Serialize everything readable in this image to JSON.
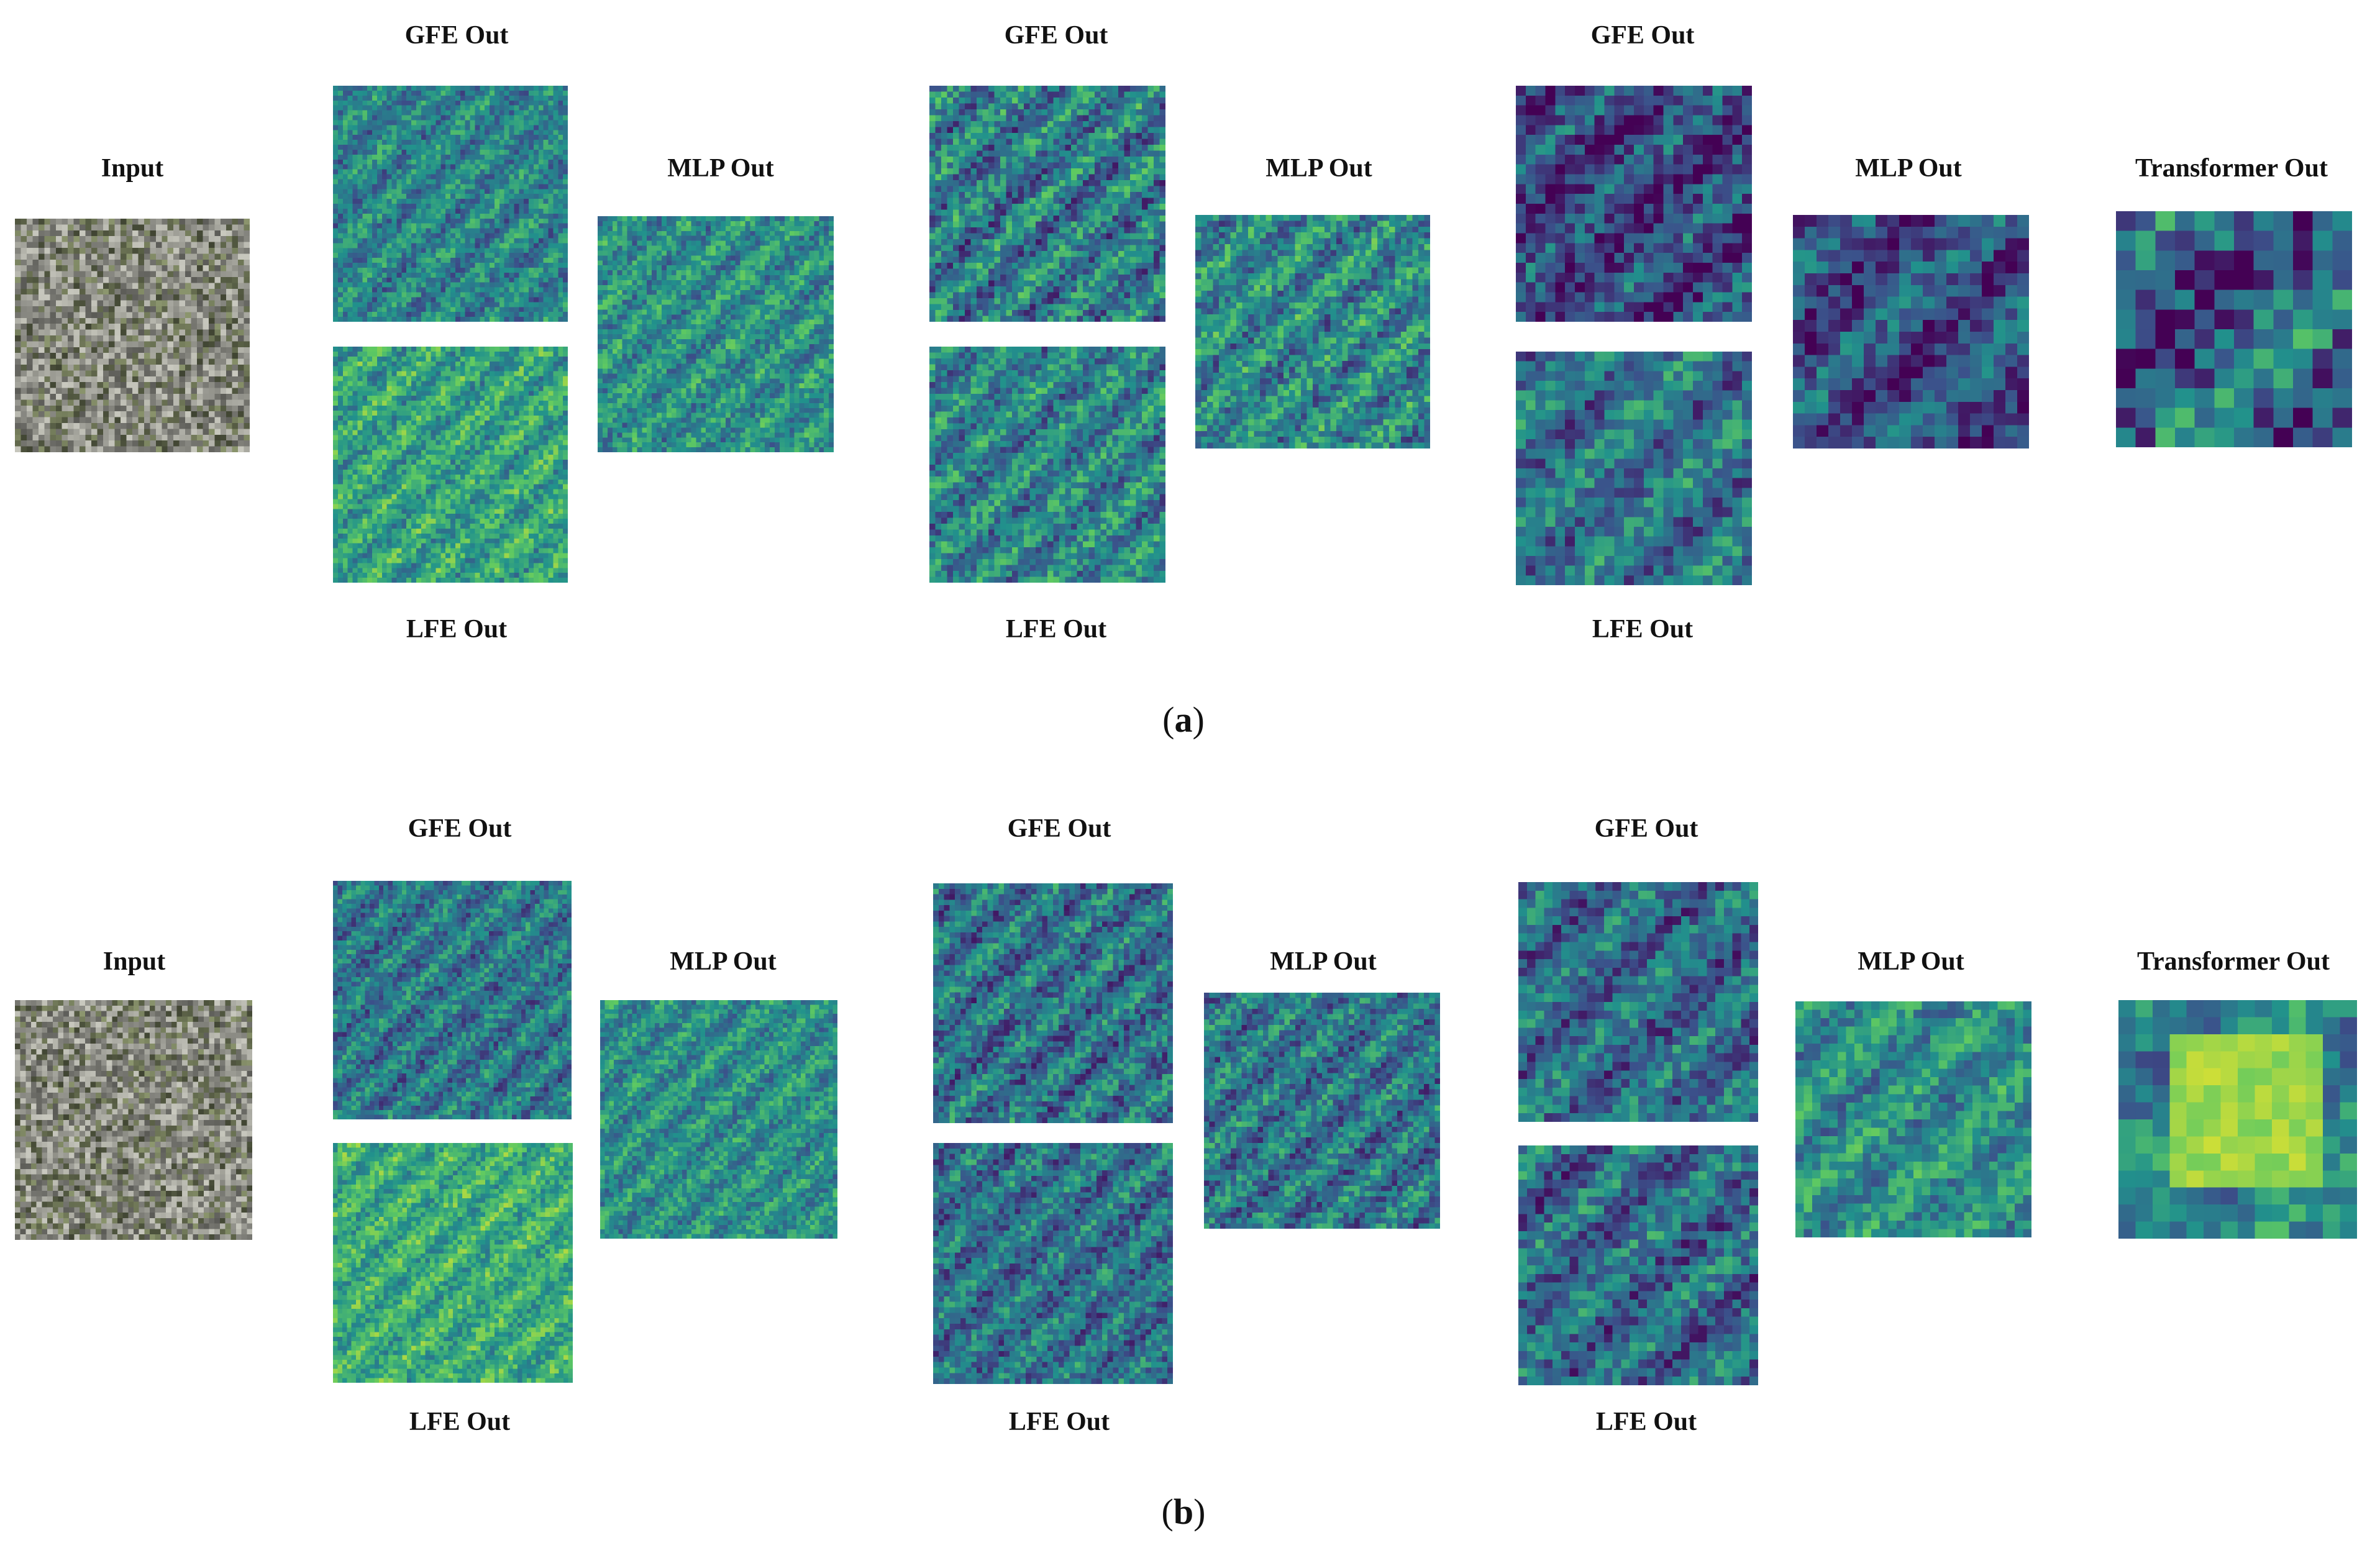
{
  "figure": {
    "panels": [
      {
        "id": "a",
        "caption": "a",
        "input_label": "Input",
        "stages": [
          {
            "gfe_label": "GFE Out",
            "lfe_label": "LFE Out",
            "mlp_label": "MLP Out"
          },
          {
            "gfe_label": "GFE Out",
            "lfe_label": "LFE Out",
            "mlp_label": "MLP Out"
          },
          {
            "gfe_label": "GFE Out",
            "lfe_label": "LFE Out",
            "mlp_label": "MLP Out"
          }
        ],
        "transformer_label": "Transformer Out"
      },
      {
        "id": "b",
        "caption": "b",
        "input_label": "Input",
        "stages": [
          {
            "gfe_label": "GFE Out",
            "lfe_label": "LFE Out",
            "mlp_label": "MLP Out"
          },
          {
            "gfe_label": "GFE Out",
            "lfe_label": "LFE Out",
            "mlp_label": "MLP Out"
          },
          {
            "gfe_label": "GFE Out",
            "lfe_label": "LFE Out",
            "mlp_label": "MLP Out"
          }
        ],
        "transformer_label": "Transformer Out"
      }
    ],
    "colormap": [
      "#440154",
      "#3b528b",
      "#21918c",
      "#5ec962",
      "#fde725"
    ]
  }
}
